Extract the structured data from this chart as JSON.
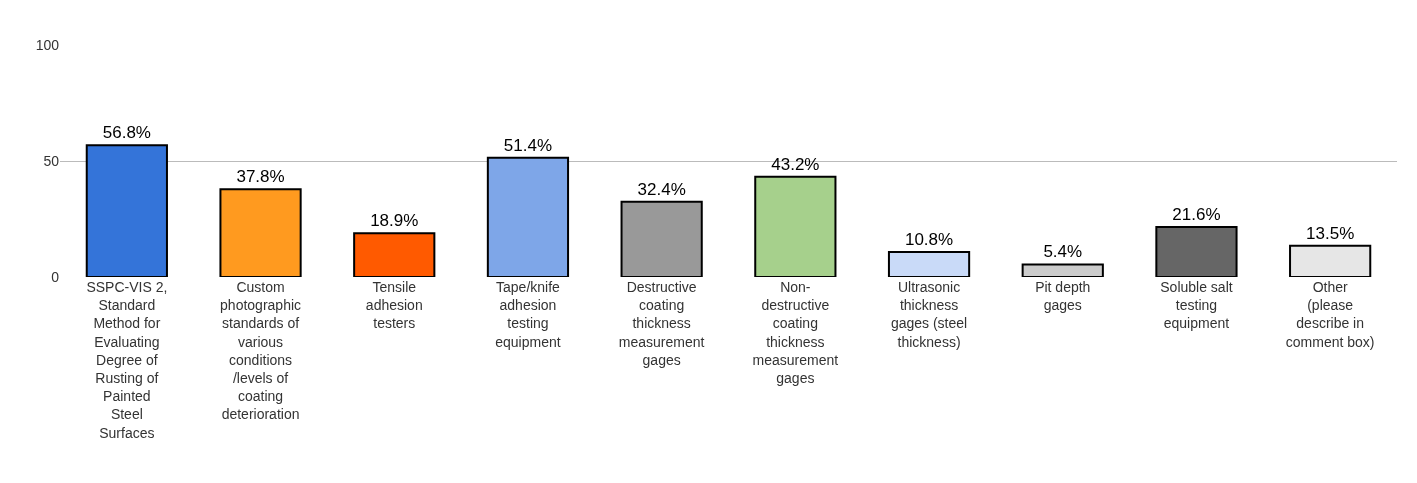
{
  "chart_data": {
    "type": "bar",
    "categories": [
      "SSPC-VIS 2, Standard Method for Evaluating Degree of Rusting of Painted Steel Surfaces",
      "Custom photographic standards of various conditions /levels of coating deterioration",
      "Tensile adhesion testers",
      "Tape/knife adhesion testing equipment",
      "Destructive coating thickness measurement gages",
      "Non-destructive coating thickness measurement gages",
      "Ultrasonic thickness gages (steel thickness)",
      "Pit depth gages",
      "Soluble salt testing equipment",
      "Other (please describe in comment box)"
    ],
    "values": [
      56.8,
      37.8,
      18.9,
      51.4,
      32.4,
      43.2,
      10.8,
      5.4,
      21.6,
      13.5
    ],
    "value_labels": [
      "56.8%",
      "37.8%",
      "18.9%",
      "51.4%",
      "32.4%",
      "43.2%",
      "10.8%",
      "5.4%",
      "21.6%",
      "13.5%"
    ],
    "colors": [
      "#3474d9",
      "#ff9a1f",
      "#ff5a00",
      "#7ea6e8",
      "#999999",
      "#a6d08c",
      "#c9daf8",
      "#cccccc",
      "#666666",
      "#e6e6e6"
    ],
    "ylim": [
      0,
      100
    ],
    "yticks": [
      0,
      50,
      100
    ],
    "grid": "y"
  }
}
